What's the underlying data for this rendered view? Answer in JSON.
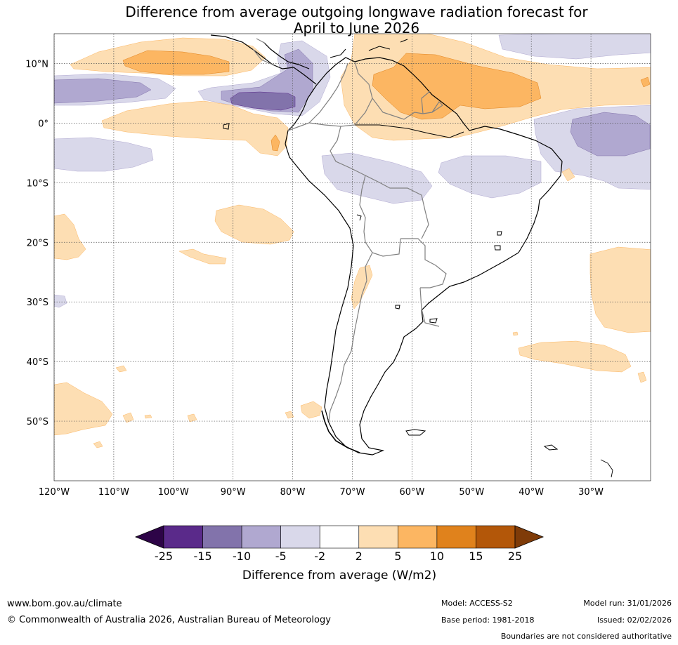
{
  "title": {
    "line1": "Difference from average outgoing longwave radiation forecast for",
    "line2": "April to June 2026"
  },
  "map": {
    "lat_labels": [
      "10°N",
      "0°",
      "10°S",
      "20°S",
      "30°S",
      "40°S",
      "50°S"
    ],
    "lon_labels": [
      "120°W",
      "110°W",
      "100°W",
      "90°W",
      "80°W",
      "70°W",
      "60°W",
      "50°W",
      "40°W",
      "30°W"
    ],
    "extent": {
      "lon": [
        -120,
        -20
      ],
      "lat": [
        -60,
        15
      ]
    }
  },
  "colorbar": {
    "ticks": [
      "-25",
      "-15",
      "-10",
      "-5",
      "-2",
      "2",
      "5",
      "10",
      "15",
      "25"
    ],
    "colors": [
      "#5a2a8a",
      "#8273ab",
      "#b0a8d0",
      "#d9d8ea",
      "#ffffff",
      "#fddeb3",
      "#fcb662",
      "#e0821c",
      "#b35709"
    ],
    "under_color": "#2d0447",
    "over_color": "#7f3b08",
    "label": "Difference from average (W/m2)"
  },
  "footer": {
    "url": "www.bom.gov.au/climate",
    "copyright": "© Commonwealth of Australia 2026, Australian Bureau of Meteorology",
    "model": "Model: ACCESS-S2",
    "base_period": "Base period: 1981-2018",
    "model_run": "Model run: 31/01/2026",
    "issued": "Issued: 02/02/2026",
    "disclaimer": "Boundaries are not considered authoritative"
  }
}
